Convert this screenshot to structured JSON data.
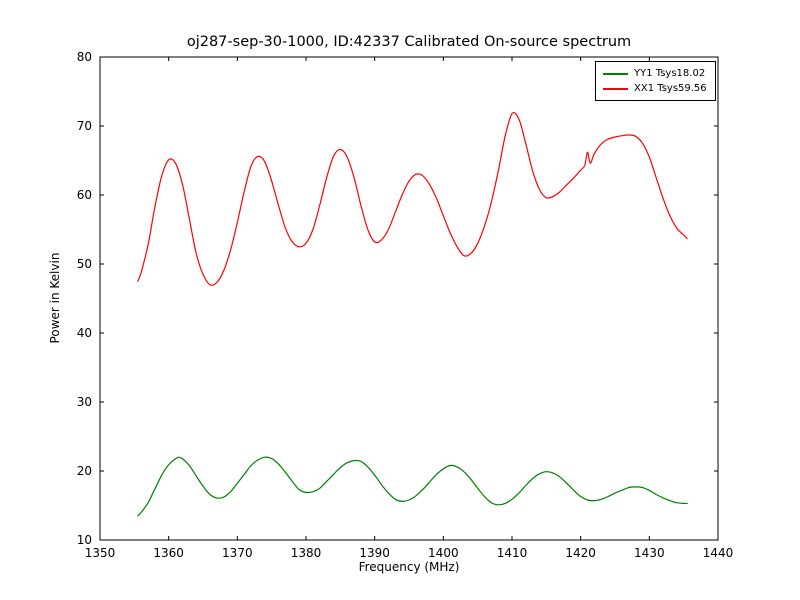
{
  "figure": {
    "background": "#ffffff",
    "frame_color": "#000000"
  },
  "chart_data": {
    "type": "line",
    "title": "oj287-sep-30-1000, ID:42337 Calibrated On-source spectrum",
    "xlabel": "Frequency (MHz)",
    "ylabel": "Power in Kelvin",
    "xlim": [
      1350,
      1440
    ],
    "ylim": [
      10,
      80
    ],
    "x_ticks": [
      1350,
      1360,
      1370,
      1380,
      1390,
      1400,
      1410,
      1420,
      1430,
      1440
    ],
    "y_ticks": [
      10,
      20,
      30,
      40,
      50,
      60,
      70,
      80
    ],
    "grid": false,
    "legend_position": "upper right",
    "series": [
      {
        "id": "yy1",
        "name": "YY1 Tsys18.02",
        "color": "#008000",
        "points": [
          [
            1355.5,
            13.5
          ],
          [
            1356,
            14.0
          ],
          [
            1357,
            15.4
          ],
          [
            1358,
            17.4
          ],
          [
            1359,
            19.4
          ],
          [
            1360,
            20.9
          ],
          [
            1361,
            21.8
          ],
          [
            1361.5,
            22.0
          ],
          [
            1362,
            21.8
          ],
          [
            1363,
            20.8
          ],
          [
            1364,
            19.3
          ],
          [
            1365,
            17.8
          ],
          [
            1366,
            16.6
          ],
          [
            1367,
            16.1
          ],
          [
            1368,
            16.2
          ],
          [
            1369,
            17.0
          ],
          [
            1370,
            18.2
          ],
          [
            1371,
            19.5
          ],
          [
            1372,
            20.8
          ],
          [
            1373,
            21.6
          ],
          [
            1374,
            22.0
          ],
          [
            1375,
            21.8
          ],
          [
            1376,
            21.0
          ],
          [
            1377,
            19.8
          ],
          [
            1378,
            18.5
          ],
          [
            1379,
            17.3
          ],
          [
            1380,
            16.9
          ],
          [
            1381,
            17.0
          ],
          [
            1382,
            17.5
          ],
          [
            1383,
            18.5
          ],
          [
            1384,
            19.5
          ],
          [
            1385,
            20.5
          ],
          [
            1386,
            21.2
          ],
          [
            1387,
            21.5
          ],
          [
            1388,
            21.4
          ],
          [
            1389,
            20.6
          ],
          [
            1390,
            19.4
          ],
          [
            1391,
            18.0
          ],
          [
            1392,
            16.8
          ],
          [
            1393,
            15.9
          ],
          [
            1394,
            15.6
          ],
          [
            1395,
            15.8
          ],
          [
            1396,
            16.4
          ],
          [
            1397,
            17.3
          ],
          [
            1398,
            18.4
          ],
          [
            1399,
            19.5
          ],
          [
            1400,
            20.3
          ],
          [
            1401,
            20.8
          ],
          [
            1402,
            20.6
          ],
          [
            1403,
            19.9
          ],
          [
            1404,
            18.8
          ],
          [
            1405,
            17.5
          ],
          [
            1406,
            16.3
          ],
          [
            1407,
            15.4
          ],
          [
            1408,
            15.1
          ],
          [
            1409,
            15.3
          ],
          [
            1410,
            15.9
          ],
          [
            1411,
            16.8
          ],
          [
            1412,
            17.9
          ],
          [
            1413,
            18.9
          ],
          [
            1414,
            19.6
          ],
          [
            1415,
            19.9
          ],
          [
            1416,
            19.7
          ],
          [
            1417,
            19.1
          ],
          [
            1418,
            18.2
          ],
          [
            1419,
            17.2
          ],
          [
            1420,
            16.3
          ],
          [
            1421,
            15.8
          ],
          [
            1422,
            15.7
          ],
          [
            1423,
            15.9
          ],
          [
            1424,
            16.3
          ],
          [
            1425,
            16.8
          ],
          [
            1426,
            17.2
          ],
          [
            1427,
            17.6
          ],
          [
            1428,
            17.7
          ],
          [
            1429,
            17.6
          ],
          [
            1430,
            17.2
          ],
          [
            1431,
            16.6
          ],
          [
            1432,
            16.1
          ],
          [
            1433,
            15.7
          ],
          [
            1434,
            15.4
          ],
          [
            1435,
            15.3
          ],
          [
            1435.5,
            15.3
          ]
        ]
      },
      {
        "id": "xx1",
        "name": "XX1 Tsys59.56",
        "color": "#ff0000",
        "points": [
          [
            1355.5,
            47.5
          ],
          [
            1356,
            48.8
          ],
          [
            1357,
            52.8
          ],
          [
            1358,
            58.3
          ],
          [
            1359,
            62.8
          ],
          [
            1360,
            65.1
          ],
          [
            1361,
            64.6
          ],
          [
            1362,
            61.6
          ],
          [
            1363,
            56.6
          ],
          [
            1364,
            51.6
          ],
          [
            1365,
            48.5
          ],
          [
            1366,
            47.0
          ],
          [
            1367,
            47.3
          ],
          [
            1368,
            49.0
          ],
          [
            1369,
            52.0
          ],
          [
            1370,
            56.0
          ],
          [
            1371,
            60.5
          ],
          [
            1372,
            64.2
          ],
          [
            1373,
            65.6
          ],
          [
            1374,
            64.8
          ],
          [
            1375,
            62.0
          ],
          [
            1376,
            58.5
          ],
          [
            1377,
            55.2
          ],
          [
            1378,
            53.2
          ],
          [
            1379,
            52.5
          ],
          [
            1380,
            53.0
          ],
          [
            1381,
            55.0
          ],
          [
            1382,
            58.5
          ],
          [
            1383,
            62.5
          ],
          [
            1384,
            65.6
          ],
          [
            1385,
            66.6
          ],
          [
            1386,
            65.5
          ],
          [
            1387,
            62.5
          ],
          [
            1388,
            58.5
          ],
          [
            1389,
            55.0
          ],
          [
            1390,
            53.2
          ],
          [
            1391,
            53.5
          ],
          [
            1392,
            55.0
          ],
          [
            1393,
            57.5
          ],
          [
            1394,
            60.0
          ],
          [
            1395,
            62.0
          ],
          [
            1396,
            63.0
          ],
          [
            1397,
            62.8
          ],
          [
            1398,
            61.5
          ],
          [
            1399,
            59.5
          ],
          [
            1400,
            57.0
          ],
          [
            1401,
            54.5
          ],
          [
            1402,
            52.5
          ],
          [
            1403,
            51.2
          ],
          [
            1404,
            51.5
          ],
          [
            1405,
            53.0
          ],
          [
            1406,
            55.5
          ],
          [
            1407,
            59.0
          ],
          [
            1408,
            63.5
          ],
          [
            1409,
            68.5
          ],
          [
            1410,
            71.8
          ],
          [
            1411,
            71.0
          ],
          [
            1412,
            67.5
          ],
          [
            1413,
            63.5
          ],
          [
            1414,
            60.8
          ],
          [
            1415,
            59.6
          ],
          [
            1416,
            59.8
          ],
          [
            1417,
            60.5
          ],
          [
            1418,
            61.5
          ],
          [
            1419,
            62.5
          ],
          [
            1420,
            63.6
          ],
          [
            1420.6,
            64.3
          ],
          [
            1421,
            66.2
          ],
          [
            1421.4,
            64.6
          ],
          [
            1422,
            66.0
          ],
          [
            1423,
            67.4
          ],
          [
            1424,
            68.1
          ],
          [
            1425,
            68.4
          ],
          [
            1426,
            68.6
          ],
          [
            1427,
            68.7
          ],
          [
            1428,
            68.5
          ],
          [
            1429,
            67.5
          ],
          [
            1430,
            65.5
          ],
          [
            1431,
            62.5
          ],
          [
            1432,
            59.5
          ],
          [
            1433,
            57.0
          ],
          [
            1434,
            55.2
          ],
          [
            1435,
            54.2
          ],
          [
            1435.5,
            53.7
          ]
        ]
      }
    ]
  }
}
